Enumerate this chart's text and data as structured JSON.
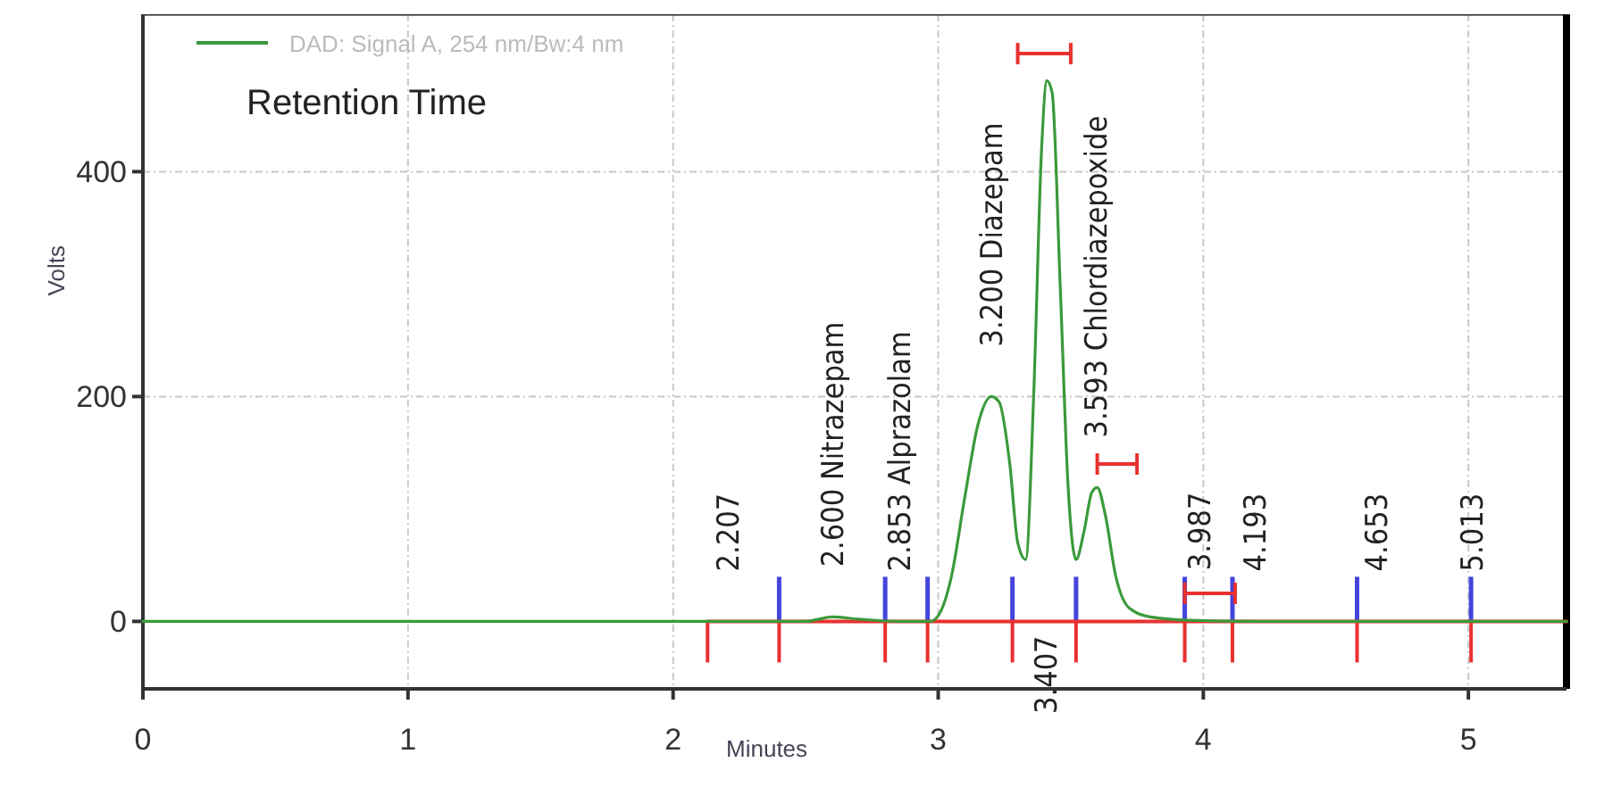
{
  "chart_data": {
    "type": "line",
    "xlabel": "Minutes",
    "ylabel": "Volts",
    "xlim": [
      0,
      5.37
    ],
    "ylim": [
      -60,
      540
    ],
    "xticks": [
      0,
      1,
      2,
      3,
      4,
      5
    ],
    "yticks": [
      0,
      200,
      400
    ],
    "grid": true,
    "legend": "top left",
    "marker": "none",
    "line_style": "solid",
    "series": [
      {
        "name": "DAD: Signal A, 254 nm/Bw:4 nm",
        "color": "#3a9a3a",
        "x": [
          0,
          2.5,
          2.55,
          2.6,
          2.7,
          2.85,
          2.97,
          3.0,
          3.05,
          3.1,
          3.15,
          3.2,
          3.23,
          3.27,
          3.3,
          3.33,
          3.36,
          3.39,
          3.41,
          3.43,
          3.46,
          3.49,
          3.52,
          3.55,
          3.58,
          3.6,
          3.63,
          3.67,
          3.72,
          3.8,
          3.95,
          4.2,
          5.37
        ],
        "values": [
          0,
          0,
          2,
          4,
          2,
          0,
          0,
          5,
          40,
          110,
          175,
          200,
          195,
          140,
          70,
          55,
          200,
          420,
          481,
          470,
          300,
          120,
          55,
          80,
          115,
          119,
          95,
          40,
          12,
          4,
          1,
          0,
          0
        ]
      },
      {
        "color": "#e8312f",
        "x": [
          2.13,
          5.37
        ],
        "values": [
          0,
          0
        ]
      }
    ],
    "annotations": [
      "Retention Time",
      {
        "text": "2.207",
        "x": 2.207,
        "y": 0
      },
      {
        "text": "2.600 Nitrazepam",
        "x": 2.6,
        "y": 4
      },
      {
        "text": "2.853 Alprazolam",
        "x": 2.853,
        "y": 0
      },
      {
        "text": "3.200 Diazepam",
        "x": 3.2,
        "y": 200
      },
      {
        "text": "3.407",
        "x": 3.407,
        "y": 0
      },
      {
        "text": "3.593 Chlordiazepoxide",
        "x": 3.593,
        "y": 119
      },
      {
        "text": "3.987",
        "x": 3.987,
        "y": 1
      },
      {
        "text": "4.193",
        "x": 4.193,
        "y": 0
      },
      {
        "text": "4.653",
        "x": 4.653,
        "y": 0
      },
      {
        "text": "5.013",
        "x": 5.013,
        "y": 0
      }
    ]
  }
}
